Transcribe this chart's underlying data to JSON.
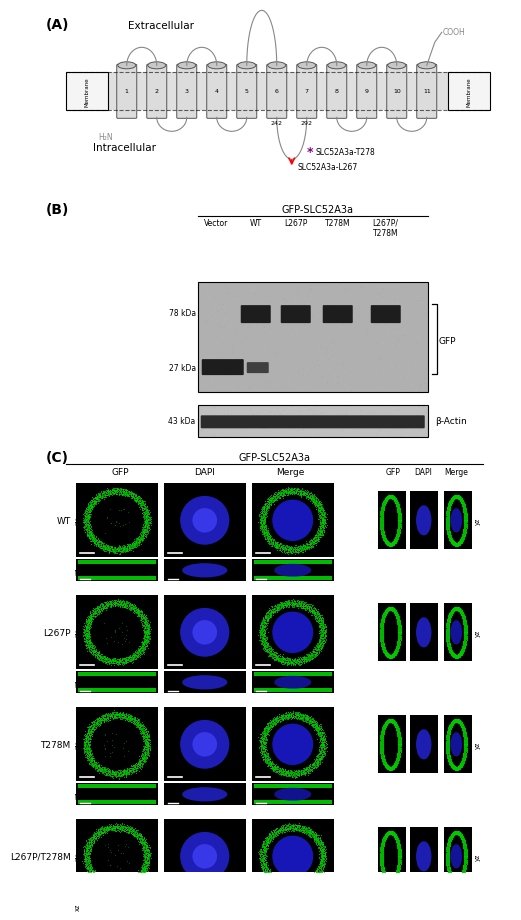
{
  "panel_A_label": "(A)",
  "panel_B_label": "(B)",
  "panel_C_label": "(C)",
  "extracellular_text": "Extracellular",
  "intracellular_text": "Intracellular",
  "membrane_text": "Membrane",
  "h2n_text": "H₂N",
  "cooh_text": "COOH",
  "tm_numbers": [
    "1",
    "2",
    "3",
    "4",
    "5",
    "6",
    "7",
    "8",
    "9",
    "10",
    "11"
  ],
  "loop_labels": [
    "242",
    "292"
  ],
  "slc_t278_text": "SLC52A3a-T278",
  "slc_l267_text": "SLC52A3a-L267",
  "panel_B_title": "GFP-SLC52A3a",
  "wb_labels": [
    "Vector",
    "WT",
    "L267P",
    "T278M",
    "L267P/\nT278M"
  ],
  "gfp_label": "GFP",
  "bactin_label": "β-Actin",
  "panel_C_title": "GFP-SLC52A3a",
  "row_labels": [
    "WT",
    "L267P",
    "T278M",
    "L267P/T278M"
  ],
  "bg_color": "#ffffff"
}
